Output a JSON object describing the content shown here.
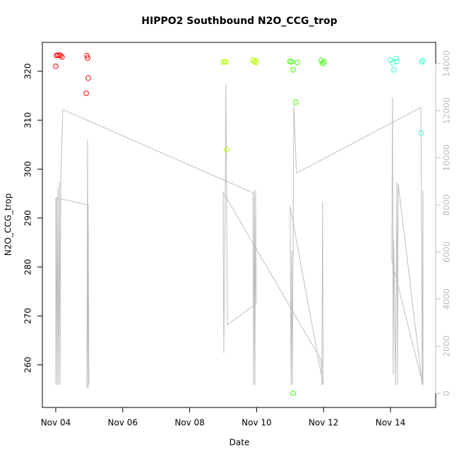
{
  "chart_data": {
    "type": "scatter",
    "title": "HIPPO2 Southbound N2O_CCG_trop",
    "xlabel": "Date",
    "ylabel": "N2O_CCG_trop",
    "xlim": [
      3.6,
      15.35
    ],
    "xticks": [
      {
        "value": 4,
        "label": "Nov 04"
      },
      {
        "value": 6,
        "label": "Nov 06"
      },
      {
        "value": 8,
        "label": "Nov 08"
      },
      {
        "value": 10,
        "label": "Nov 10"
      },
      {
        "value": 12,
        "label": "Nov 12"
      },
      {
        "value": 14,
        "label": "Nov 14"
      }
    ],
    "ylim": [
      251.3,
      325.9
    ],
    "yticks": [
      260,
      270,
      280,
      290,
      300,
      310,
      320
    ],
    "y2lim": [
      -600,
      14900
    ],
    "y2ticks": [
      0,
      2000,
      4000,
      6000,
      8000,
      10000,
      12000,
      14000
    ],
    "y2_color": "#bebebe",
    "series": [
      {
        "color": "#ff0000",
        "x": [
          4.02,
          4.06,
          4.11,
          4.15,
          4.19,
          4.0,
          4.93,
          4.95,
          4.97,
          4.91
        ],
        "values": [
          323.2,
          323.3,
          323.3,
          323.2,
          322.9,
          321.0,
          323.2,
          322.7,
          318.6,
          315.5
        ]
      },
      {
        "color": "#b3ff00",
        "x": [
          9.0,
          9.04,
          9.08,
          9.11,
          9.89,
          9.93,
          9.97,
          9.99
        ],
        "values": [
          321.9,
          321.9,
          321.9,
          304.0,
          322.3,
          321.9,
          322.2,
          321.8
        ]
      },
      {
        "color": "#33ff00",
        "x": [
          11.0,
          11.05,
          11.09,
          11.17,
          11.21,
          11.09,
          11.93,
          11.97,
          12.01
        ],
        "values": [
          322.0,
          321.9,
          320.3,
          313.7,
          321.8,
          254.2,
          322.2,
          321.6,
          321.9
        ]
      },
      {
        "color": "#33ffcc",
        "x": [
          14.0,
          14.06,
          14.1,
          14.17,
          14.19,
          14.91,
          14.93,
          14.97
        ],
        "values": [
          322.3,
          321.7,
          320.3,
          322.6,
          322.0,
          307.4,
          321.9,
          322.2
        ]
      },
      {
        "color": "#bebebe",
        "type": "line",
        "axis": "y2",
        "x": [
          4.97,
          4.95,
          4.93,
          4.97,
          4.99,
          4.97,
          4.0,
          4.0,
          4.02,
          4.04,
          4.06,
          4.08,
          4.11,
          4.13,
          4.15,
          4.21,
          9.89,
          9.91,
          9.93,
          9.95,
          9.97,
          9.99,
          9.13,
          9.08,
          9.06,
          9.02,
          9.0,
          11.93,
          11.95,
          11.97,
          11.99,
          11.0,
          11.03,
          11.05,
          11.07,
          11.11,
          11.19,
          14.91,
          14.95,
          14.97,
          14.97,
          14.04,
          14.06,
          14.08,
          14.1,
          14.15,
          14.19,
          14.21,
          14.23,
          14.95
        ],
        "values": [
          210,
          10760,
          210,
          6410,
          360,
          8000,
          8300,
          360,
          8300,
          360,
          8750,
          360,
          8960,
          360,
          9020,
          12050,
          8510,
          360,
          8660,
          360,
          8600,
          3810,
          2910,
          13100,
          7700,
          1710,
          8540,
          1410,
          360,
          8150,
          360,
          7940,
          360,
          6060,
          360,
          12260,
          9350,
          12140,
          360,
          8600,
          360,
          5610,
          12560,
          810,
          6500,
          360,
          8960,
          360,
          8900,
          360
        ]
      }
    ]
  }
}
